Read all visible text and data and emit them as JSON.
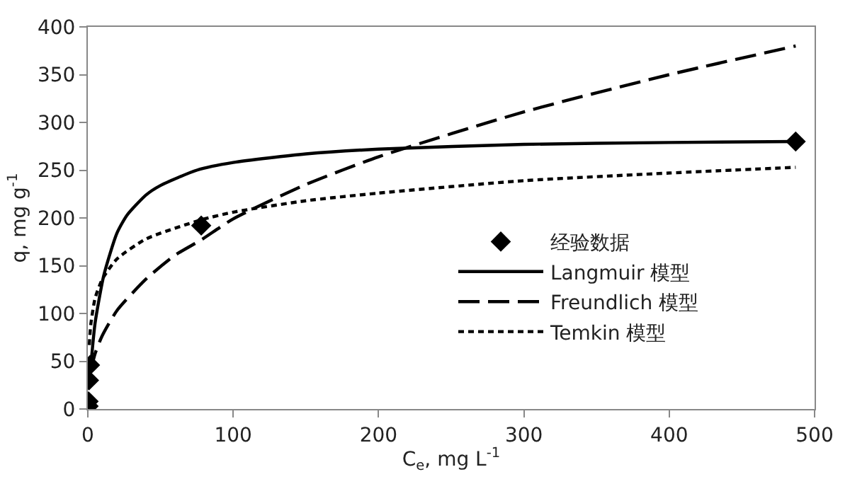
{
  "chart_data": {
    "type": "line",
    "xlabel": "C$_{e}$, mg L$^{-1}$",
    "ylabel": "q, mg g$^{-1}$",
    "xlim": [
      0,
      500
    ],
    "xticks": [
      0,
      100,
      200,
      300,
      400,
      500
    ],
    "ylim": [
      0,
      400
    ],
    "yticks": [
      0,
      50,
      100,
      150,
      200,
      250,
      300,
      350,
      400
    ],
    "legend": "right",
    "series": [
      {
        "name": "经验数据",
        "type": "scatter",
        "marker": "diamond",
        "color": "#000000",
        "x": [
          0.5,
          0.5,
          0.8,
          1.5,
          78,
          487
        ],
        "values": [
          3,
          8,
          30,
          46,
          192,
          280
        ]
      },
      {
        "name": "Langmuir 模型",
        "line_style": "solid",
        "color": "#000000",
        "x": [
          2,
          5,
          11,
          20,
          27,
          40,
          50,
          75,
          100,
          150,
          200,
          300,
          400,
          487
        ],
        "values": [
          44,
          90,
          140,
          184,
          203,
          224,
          234,
          250,
          258,
          267,
          272,
          277,
          279,
          280
        ]
      },
      {
        "name": "Freundlich 模型",
        "line_style": "dashed",
        "color": "#000000",
        "x": [
          2,
          5,
          10,
          20,
          40,
          60,
          78,
          100,
          150,
          200,
          300,
          400,
          487
        ],
        "values": [
          40,
          58,
          77,
          103,
          136,
          161,
          177,
          199,
          235,
          264,
          311,
          350,
          380
        ]
      },
      {
        "name": "Temkin 模型",
        "line_style": "dotted",
        "color": "#000000",
        "x": [
          1,
          2,
          5,
          10,
          20,
          40,
          78,
          100,
          150,
          200,
          300,
          400,
          487
        ],
        "values": [
          67,
          88,
          116,
          136,
          157,
          178,
          198,
          206,
          218,
          226,
          239,
          247,
          253
        ]
      }
    ]
  }
}
